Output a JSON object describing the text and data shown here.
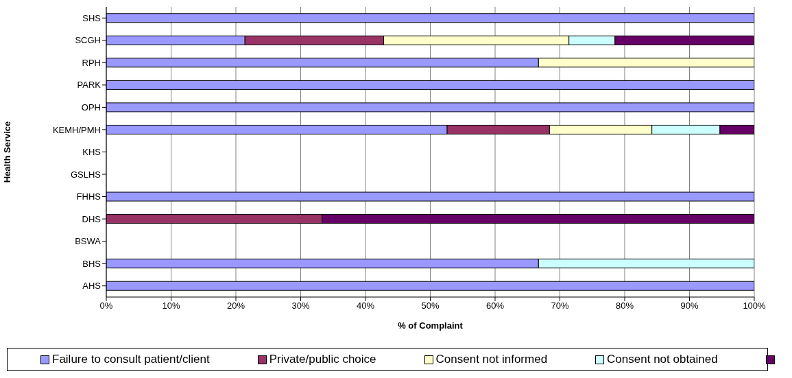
{
  "chart_data": {
    "type": "bar",
    "orientation": "horizontal",
    "stacked": true,
    "xlabel": "% of Complaint",
    "ylabel": "Health Service",
    "categories": [
      "SHS",
      "SCGH",
      "RPH",
      "PARK",
      "OPH",
      "KEMH/PMH",
      "KHS",
      "GSLHS",
      "FHHS",
      "DHS",
      "BSWA",
      "BHS",
      "AHS"
    ],
    "series": [
      {
        "name": "Failure to consult patient/client",
        "color": "#9999ff",
        "values": [
          100,
          21.4,
          66.7,
          100,
          100,
          52.6,
          0,
          0,
          100,
          null,
          0,
          66.7,
          100
        ]
      },
      {
        "name": "Private/public choice",
        "color": "#993366",
        "values": [
          null,
          21.4,
          null,
          null,
          null,
          15.8,
          null,
          null,
          null,
          33.3,
          null,
          null,
          null
        ]
      },
      {
        "name": "Consent not informed",
        "color": "#ffffcc",
        "values": [
          null,
          28.6,
          33.3,
          null,
          null,
          15.8,
          null,
          null,
          null,
          null,
          null,
          null,
          null
        ]
      },
      {
        "name": "Consent not obtained",
        "color": "#ccffff",
        "values": [
          null,
          7.1,
          null,
          null,
          null,
          10.5,
          null,
          null,
          null,
          null,
          null,
          33.3,
          null
        ]
      },
      {
        "color": "#660066",
        "values": [
          null,
          21.4,
          null,
          null,
          null,
          5.3,
          null,
          null,
          null,
          66.7,
          null,
          null,
          null
        ]
      }
    ],
    "xlim": [
      0,
      100
    ],
    "xticks": [
      {
        "value": 0,
        "label": "0%"
      },
      {
        "value": 10,
        "label": "10%"
      },
      {
        "value": 20,
        "label": "20%"
      },
      {
        "value": 30,
        "label": "30%"
      },
      {
        "value": 40,
        "label": "40%"
      },
      {
        "value": 50,
        "label": "50%"
      },
      {
        "value": 60,
        "label": "60%"
      },
      {
        "value": 70,
        "label": "70%"
      },
      {
        "value": 80,
        "label": "80%"
      },
      {
        "value": 90,
        "label": "90%"
      },
      {
        "value": 100,
        "label": "100%"
      }
    ],
    "grid": "x",
    "legend": "bottom"
  }
}
